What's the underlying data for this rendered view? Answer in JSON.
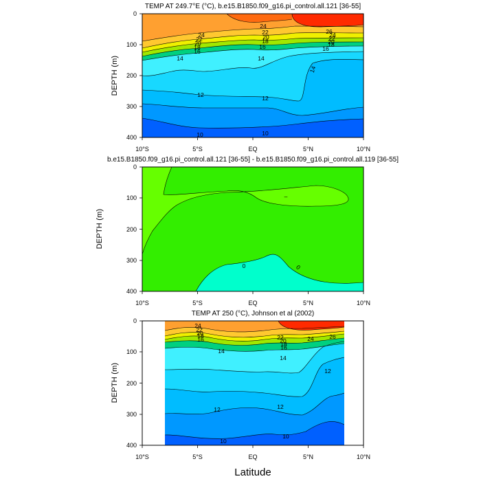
{
  "figure": {
    "x_axis_title": "Latitude",
    "colors": {
      "c_ge26": "#ff2a00",
      "c_25": "#ff6a10",
      "c_24": "#ffa030",
      "c_22": "#ffc830",
      "c_20": "#f0f000",
      "c_18": "#a0e800",
      "c_16": "#00d080",
      "c_14": "#40f0ff",
      "c_13": "#18d8ff",
      "c_12": "#00bcff",
      "c_11": "#0098ff",
      "c_10": "#0060ff",
      "d_pos": "#66ff00",
      "d_zero": "#33ee00",
      "d_neg": "#00ffcc"
    }
  },
  "chart_data": [
    {
      "type": "contour",
      "title": "TEMP AT 249.7°E (°C), b.e15.B1850.f09_g16.pi_control.all.121 [36-55]",
      "xlabel": "",
      "ylabel": "DEPTH (m)",
      "x_ticks": [
        "10°S",
        "5°S",
        "EQ",
        "5°N",
        "10°N"
      ],
      "x_tick_values": [
        -10,
        -5,
        0,
        5,
        10
      ],
      "y_ticks": [
        "0",
        "100",
        "200",
        "300",
        "400"
      ],
      "y_tick_values": [
        0,
        100,
        200,
        300,
        400
      ],
      "xlim": [
        -10,
        10
      ],
      "ylim": [
        400,
        0
      ],
      "contour_levels": [
        10,
        12,
        14,
        16,
        18,
        20,
        22,
        24,
        26
      ],
      "contour_labels": [
        "24",
        "22",
        "20",
        "18",
        "16",
        "14",
        "24",
        "22",
        "20",
        "18",
        "16",
        "14",
        "26",
        "24",
        "22",
        "20",
        "18",
        "16",
        "14",
        "12",
        "12",
        "12",
        "10",
        "10"
      ]
    },
    {
      "type": "contour",
      "title": "b.e15.B1850.f09_g16.pi_control.all.121 [36-55] - b.e15.B1850.f09_g16.pi_control.all.119 [36-55]",
      "xlabel": "",
      "ylabel": "DEPTH (m)",
      "x_ticks": [
        "10°S",
        "5°S",
        "EQ",
        "5°N",
        "10°N"
      ],
      "x_tick_values": [
        -10,
        -5,
        0,
        5,
        10
      ],
      "y_ticks": [
        "0",
        "100",
        "200",
        "300",
        "400"
      ],
      "y_tick_values": [
        0,
        100,
        200,
        300,
        400
      ],
      "xlim": [
        -10,
        10
      ],
      "ylim": [
        400,
        0
      ],
      "contour_levels": [
        -1,
        0,
        1
      ],
      "contour_labels": [
        "0",
        "0",
        "–"
      ]
    },
    {
      "type": "contour",
      "title": "TEMP AT 250 (°C), Johnson et al (2002)",
      "xlabel": "Latitude",
      "ylabel": "DEPTH (m)",
      "x_ticks": [
        "10°S",
        "5°S",
        "EQ",
        "5°N",
        "10°N"
      ],
      "x_tick_values": [
        -10,
        -5,
        0,
        5,
        10
      ],
      "y_ticks": [
        "0",
        "100",
        "200",
        "300",
        "400"
      ],
      "y_tick_values": [
        0,
        100,
        200,
        300,
        400
      ],
      "xlim": [
        -10,
        10
      ],
      "ylim": [
        400,
        0
      ],
      "data_x_range": [
        -8,
        8.2
      ],
      "contour_levels": [
        10,
        11,
        12,
        13,
        14,
        16,
        18,
        20,
        22,
        24,
        26
      ],
      "contour_labels": [
        "24",
        "22",
        "20",
        "18",
        "16",
        "14",
        "22",
        "20",
        "18",
        "16",
        "14",
        "24",
        "26",
        "12",
        "12",
        "12",
        "10",
        "10"
      ]
    }
  ]
}
